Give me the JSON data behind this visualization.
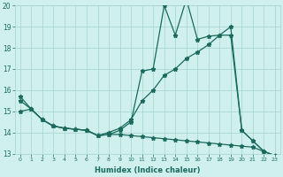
{
  "xlabel": "Humidex (Indice chaleur)",
  "x_values": [
    0,
    1,
    2,
    3,
    4,
    5,
    6,
    7,
    8,
    9,
    10,
    11,
    12,
    13,
    14,
    15,
    16,
    17,
    18,
    19,
    20,
    21,
    22,
    23
  ],
  "series_spiky": [
    15.7,
    15.1,
    14.6,
    14.3,
    14.2,
    14.15,
    14.1,
    13.85,
    13.9,
    14.1,
    14.5,
    16.9,
    17.0,
    20.0,
    18.6,
    20.3,
    18.4,
    18.55,
    18.6,
    19.0,
    14.1,
    13.6,
    13.1,
    12.9
  ],
  "series_rising": [
    15.5,
    15.1,
    14.6,
    14.3,
    14.2,
    14.15,
    14.1,
    13.85,
    14.0,
    14.2,
    14.6,
    15.5,
    16.0,
    16.7,
    17.0,
    17.5,
    17.8,
    18.15,
    18.6,
    18.6,
    14.1,
    13.6,
    13.1,
    12.9
  ],
  "series_declining": [
    15.0,
    15.1,
    14.6,
    14.3,
    14.2,
    14.15,
    14.1,
    13.85,
    13.9,
    13.9,
    13.85,
    13.8,
    13.75,
    13.7,
    13.65,
    13.6,
    13.55,
    13.5,
    13.45,
    13.4,
    13.35,
    13.3,
    13.1,
    12.9
  ],
  "bg_color": "#cff0ec",
  "grid_color": "#aad8d4",
  "line_color": "#1a6b5e",
  "ylim": [
    13,
    20
  ],
  "yticks": [
    13,
    14,
    15,
    16,
    17,
    18,
    19,
    20
  ],
  "xticks": [
    0,
    1,
    2,
    3,
    4,
    5,
    6,
    7,
    8,
    9,
    10,
    11,
    12,
    13,
    14,
    15,
    16,
    17,
    18,
    19,
    20,
    21,
    22,
    23
  ],
  "marker": "*",
  "linewidth": 0.9,
  "markersize": 3.5
}
